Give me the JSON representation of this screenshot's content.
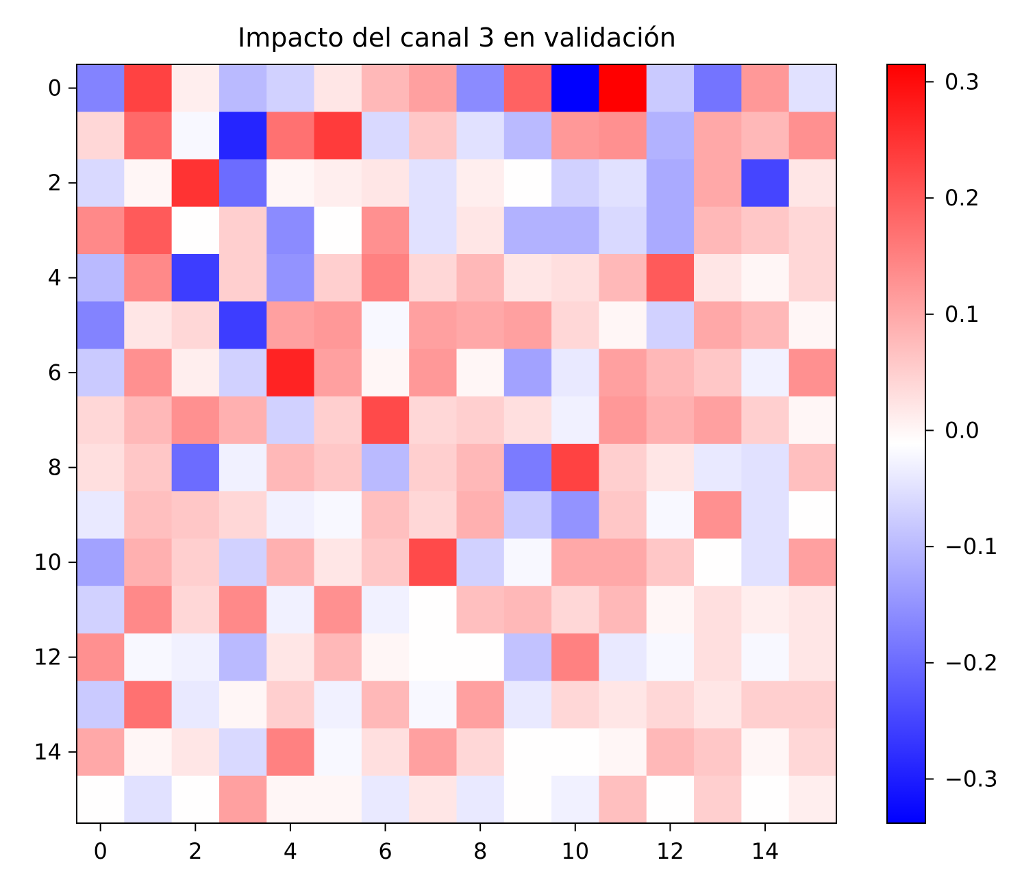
{
  "chart_data": {
    "type": "heatmap",
    "title": "Impacto del canal 3 en validación",
    "xlabel": "",
    "ylabel": "",
    "colormap": "bwr",
    "colors": {
      "low": "#0000ff",
      "mid": "#ffffff",
      "high": "#ff0000"
    },
    "vmin": -0.338,
    "vmax": 0.315,
    "x_ticks": [
      0,
      2,
      4,
      6,
      8,
      10,
      12,
      14
    ],
    "y_ticks": [
      0,
      2,
      4,
      6,
      8,
      10,
      12,
      14
    ],
    "x_tick_labels": [
      "0",
      "2",
      "4",
      "6",
      "8",
      "10",
      "12",
      "14"
    ],
    "y_tick_labels": [
      "0",
      "2",
      "4",
      "6",
      "8",
      "10",
      "12",
      "14"
    ],
    "colorbar_ticks": [
      0.3,
      0.2,
      0.1,
      0.0,
      -0.1,
      -0.2,
      -0.3
    ],
    "colorbar_tick_labels": [
      "0.3",
      "0.2",
      "0.1",
      "0.0",
      "−0.1",
      "−0.2",
      "−0.3"
    ],
    "grid": false,
    "rows": 16,
    "cols": 16,
    "values": [
      [
        -0.17,
        0.23,
        0.01,
        -0.1,
        -0.07,
        0.02,
        0.08,
        0.11,
        -0.16,
        0.19,
        -0.34,
        0.315,
        -0.08,
        -0.19,
        0.12,
        -0.05
      ],
      [
        0.04,
        0.18,
        -0.02,
        -0.29,
        0.17,
        0.24,
        -0.06,
        0.06,
        -0.05,
        -0.1,
        0.12,
        0.13,
        -0.11,
        0.1,
        0.08,
        0.13
      ],
      [
        -0.06,
        0.0,
        0.25,
        -0.2,
        0.0,
        0.01,
        0.02,
        -0.05,
        0.01,
        -0.01,
        -0.07,
        -0.05,
        -0.12,
        0.1,
        -0.25,
        0.02
      ],
      [
        0.14,
        0.2,
        -0.01,
        0.05,
        -0.16,
        -0.01,
        0.13,
        -0.05,
        0.02,
        -0.11,
        -0.11,
        -0.06,
        -0.12,
        0.08,
        0.06,
        0.04
      ],
      [
        -0.1,
        0.14,
        -0.26,
        0.05,
        -0.15,
        0.05,
        0.15,
        0.04,
        0.08,
        0.02,
        0.03,
        0.08,
        0.2,
        0.02,
        0.0,
        0.04
      ],
      [
        -0.17,
        0.02,
        0.04,
        -0.26,
        0.11,
        0.12,
        -0.02,
        0.11,
        0.1,
        0.11,
        0.04,
        0.0,
        -0.07,
        0.1,
        0.08,
        0.0
      ],
      [
        -0.08,
        0.13,
        0.01,
        -0.07,
        0.27,
        0.11,
        0.0,
        0.12,
        0.0,
        -0.13,
        -0.04,
        0.11,
        0.08,
        0.06,
        -0.03,
        0.13
      ],
      [
        0.04,
        0.08,
        0.13,
        0.09,
        -0.07,
        0.05,
        0.22,
        0.04,
        0.05,
        0.03,
        -0.03,
        0.12,
        0.09,
        0.11,
        0.05,
        0.0
      ],
      [
        0.03,
        0.06,
        -0.2,
        -0.03,
        0.08,
        0.06,
        -0.1,
        0.05,
        0.08,
        -0.18,
        0.23,
        0.05,
        0.02,
        -0.04,
        -0.05,
        0.07
      ],
      [
        -0.04,
        0.07,
        0.06,
        0.04,
        -0.03,
        -0.02,
        0.07,
        0.04,
        0.09,
        -0.08,
        -0.15,
        0.06,
        -0.02,
        0.13,
        -0.05,
        -0.01
      ],
      [
        -0.13,
        0.09,
        0.05,
        -0.07,
        0.09,
        0.02,
        0.06,
        0.22,
        -0.07,
        -0.02,
        0.1,
        0.1,
        0.06,
        -0.01,
        -0.05,
        0.11
      ],
      [
        -0.07,
        0.14,
        0.04,
        0.14,
        -0.03,
        0.13,
        -0.03,
        -0.01,
        0.07,
        0.08,
        0.04,
        0.08,
        0.0,
        0.03,
        0.01,
        0.02
      ],
      [
        0.13,
        -0.02,
        -0.03,
        -0.1,
        0.02,
        0.08,
        0.0,
        -0.01,
        -0.01,
        -0.09,
        0.15,
        -0.04,
        -0.02,
        0.03,
        -0.02,
        0.02
      ],
      [
        -0.08,
        0.17,
        -0.04,
        0.0,
        0.05,
        -0.03,
        0.08,
        -0.02,
        0.11,
        -0.04,
        0.04,
        0.02,
        0.04,
        0.02,
        0.05,
        0.05
      ],
      [
        0.1,
        0.0,
        0.02,
        -0.06,
        0.15,
        -0.02,
        0.03,
        0.11,
        0.04,
        -0.01,
        -0.01,
        0.0,
        0.08,
        0.06,
        0.0,
        0.04
      ],
      [
        -0.01,
        -0.05,
        -0.01,
        0.11,
        0.0,
        0.0,
        -0.04,
        0.02,
        -0.04,
        -0.01,
        -0.03,
        0.07,
        -0.01,
        0.05,
        -0.01,
        0.01
      ]
    ]
  }
}
